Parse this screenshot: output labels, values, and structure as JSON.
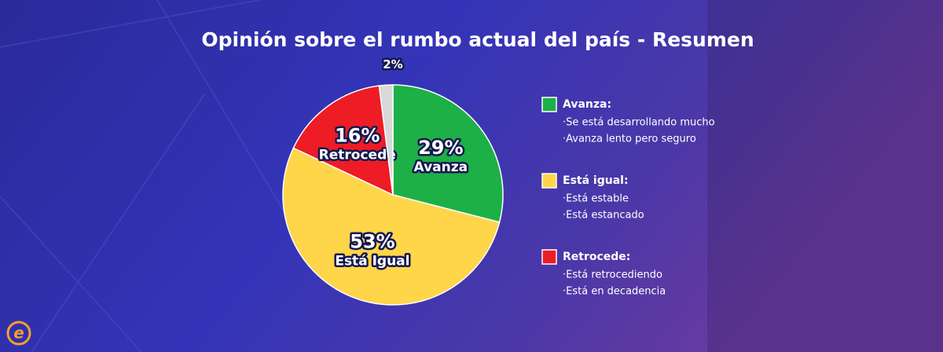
{
  "chart_data": {
    "type": "pie",
    "title": "Opinión sobre el rumbo actual del país - Resumen",
    "categories": [
      "Avanza",
      "Está Igual",
      "Retrocede",
      null
    ],
    "values": [
      29,
      53,
      16,
      2
    ],
    "value_labels": [
      "29%",
      "53%",
      "16%",
      "2%"
    ],
    "colors": [
      "#1db046",
      "#ffd54a",
      "#ee1c24",
      "#d9d9d9"
    ],
    "legend": [
      {
        "title": "Avanza:",
        "color": "#1db046",
        "lines": [
          "·Se está desarrollando mucho",
          "·Avanza lento pero seguro"
        ]
      },
      {
        "title": "Está igual:",
        "color": "#ffd54a",
        "lines": [
          "·Está estable",
          "·Está estancado"
        ]
      },
      {
        "title": "Retrocede:",
        "color": "#ee1c24",
        "lines": [
          "·Está retrocediendo",
          "·Está en decadencia"
        ]
      }
    ],
    "logo": "e"
  }
}
